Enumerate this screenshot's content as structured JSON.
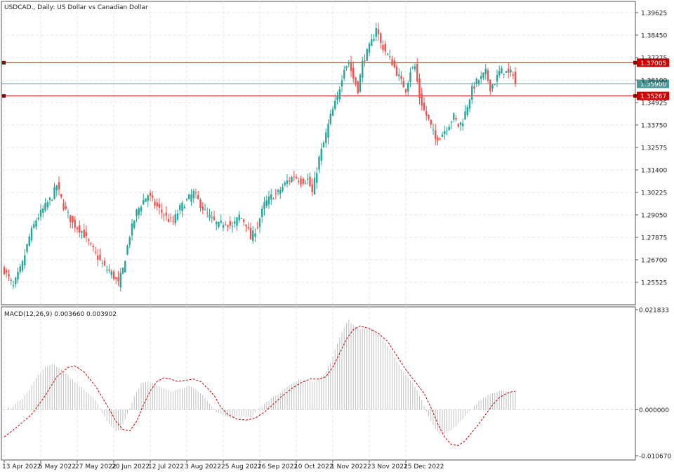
{
  "chart_data": [
    {
      "type": "candlestick",
      "title": "USDCAD., Daily:  US Dollar vs Canadian Dollar",
      "ylim": [
        1.2435,
        1.4021
      ],
      "y_ticks": [
        "1.39625",
        "1.38450",
        "1.37275",
        "1.36100",
        "1.34925",
        "1.33750",
        "1.32575",
        "1.31400",
        "1.30225",
        "1.29050",
        "1.27875",
        "1.26700",
        "1.25525"
      ],
      "x_ticks": [
        "13 Apr 2022",
        "5 May 2022",
        "27 May 2022",
        "20 Jun 2022",
        "12 Jul 2022",
        "3 Aug 2022",
        "25 Aug 2022",
        "16 Sep 2022",
        "10 Oct 2022",
        "1 Nov 2022",
        "23 Nov 2022",
        "15 Dec 2022"
      ],
      "grid": true,
      "horizontal_lines": [
        {
          "value": 1.37005,
          "label": "1.37005",
          "color": "#cc0000"
        },
        {
          "value": 1.359,
          "label": "1.35900",
          "color": "#4a9a9a"
        },
        {
          "value": 1.35267,
          "label": "1.35267",
          "color": "#cc0000"
        }
      ],
      "colors": {
        "bull": "#26a69a",
        "bear": "#ef5350"
      },
      "anchors": [
        [
          0,
          1.2615
        ],
        [
          4,
          1.253
        ],
        [
          8,
          1.265
        ],
        [
          11,
          1.279
        ],
        [
          14,
          1.288
        ],
        [
          18,
          1.295
        ],
        [
          21,
          1.3
        ],
        [
          23,
          1.306
        ],
        [
          26,
          1.295
        ],
        [
          30,
          1.286
        ],
        [
          34,
          1.282
        ],
        [
          37,
          1.276
        ],
        [
          40,
          1.27
        ],
        [
          44,
          1.263
        ],
        [
          47,
          1.26
        ],
        [
          50,
          1.2545
        ],
        [
          52,
          1.262
        ],
        [
          55,
          1.28
        ],
        [
          58,
          1.292
        ],
        [
          61,
          1.298
        ],
        [
          63,
          1.301
        ],
        [
          66,
          1.296
        ],
        [
          69,
          1.292
        ],
        [
          72,
          1.288
        ],
        [
          74,
          1.287
        ],
        [
          77,
          1.294
        ],
        [
          80,
          1.298
        ],
        [
          83,
          1.302
        ],
        [
          85,
          1.298
        ],
        [
          88,
          1.292
        ],
        [
          91,
          1.288
        ],
        [
          94,
          1.285
        ],
        [
          97,
          1.287
        ],
        [
          100,
          1.284
        ],
        [
          103,
          1.29
        ],
        [
          106,
          1.286
        ],
        [
          108,
          1.278
        ],
        [
          111,
          1.285
        ],
        [
          114,
          1.296
        ],
        [
          117,
          1.3
        ],
        [
          120,
          1.302
        ],
        [
          124,
          1.308
        ],
        [
          127,
          1.311
        ],
        [
          130,
          1.308
        ],
        [
          133,
          1.309
        ],
        [
          135,
          1.302
        ],
        [
          138,
          1.32
        ],
        [
          140,
          1.328
        ],
        [
          143,
          1.342
        ],
        [
          146,
          1.352
        ],
        [
          149,
          1.368
        ],
        [
          151,
          1.37
        ],
        [
          153,
          1.362
        ],
        [
          155,
          1.356
        ],
        [
          157,
          1.37
        ],
        [
          160,
          1.378
        ],
        [
          162,
          1.384
        ],
        [
          163,
          1.389
        ],
        [
          165,
          1.38
        ],
        [
          167,
          1.376
        ],
        [
          170,
          1.37
        ],
        [
          172,
          1.365
        ],
        [
          174,
          1.36
        ],
        [
          176,
          1.356
        ],
        [
          178,
          1.366
        ],
        [
          180,
          1.368
        ],
        [
          182,
          1.352
        ],
        [
          184,
          1.345
        ],
        [
          186,
          1.34
        ],
        [
          189,
          1.33
        ],
        [
          192,
          1.333
        ],
        [
          195,
          1.338
        ],
        [
          197,
          1.342
        ],
        [
          199,
          1.337
        ],
        [
          201,
          1.34
        ],
        [
          203,
          1.348
        ],
        [
          205,
          1.356
        ],
        [
          207,
          1.36
        ],
        [
          209,
          1.362
        ],
        [
          211,
          1.365
        ],
        [
          213,
          1.357
        ],
        [
          215,
          1.36
        ],
        [
          217,
          1.365
        ],
        [
          219,
          1.366
        ],
        [
          221,
          1.364
        ],
        [
          223,
          1.365
        ],
        [
          224,
          1.359
        ]
      ]
    },
    {
      "type": "histogram+line",
      "indicator": "MACD(12,26,9)",
      "values_label": "0.003660 0.003902",
      "ylim": [
        -0.01067,
        0.021833
      ],
      "y_ticks": [
        "0.021833",
        "0.000000",
        "-0.010670"
      ],
      "colors": {
        "histogram": "#c0c0c0",
        "signal": "#cc0000"
      },
      "macd_anchors": [
        [
          0,
          -0.0002
        ],
        [
          4,
          0.0008
        ],
        [
          8,
          0.0025
        ],
        [
          11,
          0.0043
        ],
        [
          14,
          0.0068
        ],
        [
          18,
          0.009
        ],
        [
          21,
          0.0098
        ],
        [
          24,
          0.009
        ],
        [
          28,
          0.0072
        ],
        [
          32,
          0.0055
        ],
        [
          36,
          0.0038
        ],
        [
          40,
          0.002
        ],
        [
          43,
          -0.0008
        ],
        [
          46,
          -0.003
        ],
        [
          49,
          -0.0045
        ],
        [
          51,
          -0.0042
        ],
        [
          54,
          -0.001
        ],
        [
          57,
          0.003
        ],
        [
          60,
          0.0055
        ],
        [
          63,
          0.006
        ],
        [
          66,
          0.0055
        ],
        [
          69,
          0.0047
        ],
        [
          72,
          0.004
        ],
        [
          75,
          0.004
        ],
        [
          78,
          0.0046
        ],
        [
          81,
          0.005
        ],
        [
          84,
          0.0044
        ],
        [
          87,
          0.003
        ],
        [
          90,
          0.0012
        ],
        [
          93,
          -0.0005
        ],
        [
          96,
          -0.0012
        ],
        [
          99,
          -0.0018
        ],
        [
          102,
          -0.0015
        ],
        [
          105,
          -0.0013
        ],
        [
          108,
          -0.0015
        ],
        [
          111,
          -0.0002
        ],
        [
          114,
          0.0012
        ],
        [
          118,
          0.0028
        ],
        [
          122,
          0.004
        ],
        [
          126,
          0.0056
        ],
        [
          130,
          0.0066
        ],
        [
          134,
          0.006
        ],
        [
          137,
          0.006
        ],
        [
          140,
          0.0075
        ],
        [
          143,
          0.01
        ],
        [
          146,
          0.014
        ],
        [
          149,
          0.0175
        ],
        [
          151,
          0.019
        ],
        [
          153,
          0.018
        ],
        [
          156,
          0.0172
        ],
        [
          159,
          0.0172
        ],
        [
          162,
          0.017
        ],
        [
          165,
          0.0155
        ],
        [
          168,
          0.0135
        ],
        [
          171,
          0.011
        ],
        [
          174,
          0.0085
        ],
        [
          177,
          0.0068
        ],
        [
          180,
          0.005
        ],
        [
          183,
          0.002
        ],
        [
          186,
          -0.0015
        ],
        [
          189,
          -0.004
        ],
        [
          191,
          -0.005
        ],
        [
          193,
          -0.005
        ],
        [
          196,
          -0.0042
        ],
        [
          199,
          -0.003
        ],
        [
          202,
          -0.0015
        ],
        [
          205,
          0.0002
        ],
        [
          208,
          0.0018
        ],
        [
          211,
          0.0028
        ],
        [
          214,
          0.0035
        ],
        [
          217,
          0.004
        ],
        [
          220,
          0.004
        ],
        [
          223,
          0.0037
        ],
        [
          224,
          0.0037
        ]
      ],
      "signal_anchors": [
        [
          0,
          -0.0058
        ],
        [
          6,
          -0.0035
        ],
        [
          12,
          -0.001
        ],
        [
          18,
          0.003
        ],
        [
          23,
          0.007
        ],
        [
          28,
          0.009
        ],
        [
          31,
          0.0093
        ],
        [
          35,
          0.008
        ],
        [
          40,
          0.005
        ],
        [
          45,
          0.001
        ],
        [
          49,
          -0.0025
        ],
        [
          52,
          -0.0042
        ],
        [
          55,
          -0.0045
        ],
        [
          58,
          -0.0025
        ],
        [
          61,
          0.001
        ],
        [
          64,
          0.004
        ],
        [
          67,
          0.006
        ],
        [
          70,
          0.0068
        ],
        [
          73,
          0.0065
        ],
        [
          76,
          0.006
        ],
        [
          80,
          0.0063
        ],
        [
          83,
          0.0065
        ],
        [
          86,
          0.006
        ],
        [
          89,
          0.0046
        ],
        [
          92,
          0.003
        ],
        [
          95,
          0.0005
        ],
        [
          98,
          -0.001
        ],
        [
          102,
          -0.002
        ],
        [
          106,
          -0.0022
        ],
        [
          110,
          -0.0018
        ],
        [
          114,
          -0.0005
        ],
        [
          118,
          0.0012
        ],
        [
          122,
          0.003
        ],
        [
          126,
          0.0045
        ],
        [
          130,
          0.0057
        ],
        [
          134,
          0.0065
        ],
        [
          138,
          0.0065
        ],
        [
          141,
          0.007
        ],
        [
          144,
          0.009
        ],
        [
          147,
          0.012
        ],
        [
          150,
          0.015
        ],
        [
          153,
          0.017
        ],
        [
          156,
          0.0178
        ],
        [
          160,
          0.0172
        ],
        [
          164,
          0.0162
        ],
        [
          168,
          0.0145
        ],
        [
          172,
          0.0115
        ],
        [
          176,
          0.0085
        ],
        [
          180,
          0.006
        ],
        [
          184,
          0.0035
        ],
        [
          187,
          0.0005
        ],
        [
          190,
          -0.003
        ],
        [
          193,
          -0.0058
        ],
        [
          196,
          -0.0074
        ],
        [
          199,
          -0.0076
        ],
        [
          202,
          -0.0066
        ],
        [
          205,
          -0.0048
        ],
        [
          208,
          -0.003
        ],
        [
          211,
          -0.001
        ],
        [
          214,
          0.001
        ],
        [
          217,
          0.0026
        ],
        [
          220,
          0.0034
        ],
        [
          223,
          0.0039
        ],
        [
          224,
          0.0039
        ]
      ]
    }
  ]
}
